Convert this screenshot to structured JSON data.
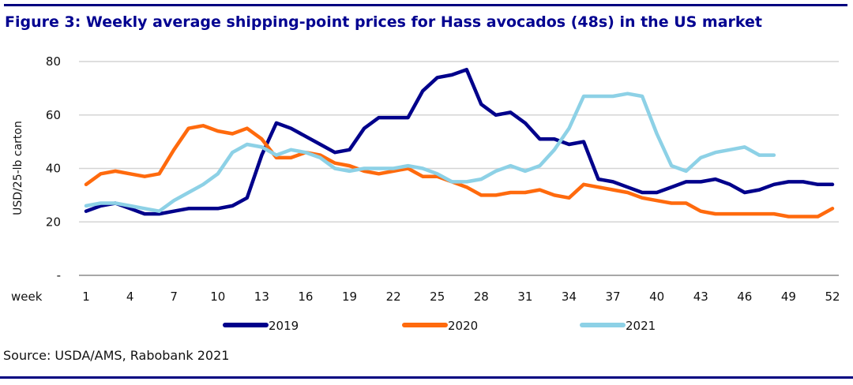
{
  "figure": {
    "title": "Figure 3: Weekly average shipping-point prices for Hass avocados (48s) in the US market",
    "source": "Source: USDA/AMS, Rabobank 2021"
  },
  "chart_data": {
    "type": "line",
    "title": "Figure 3: Weekly average shipping-point prices for Hass avocados (48s) in the US market",
    "xlabel": "week",
    "ylabel": "USD/25-lb carton",
    "ylim": [
      0,
      80
    ],
    "xlim": [
      1,
      52
    ],
    "grid": true,
    "legend": "bottom-center",
    "y_ticks": [
      {
        "value": 0,
        "label": "-"
      },
      {
        "value": 20,
        "label": "20"
      },
      {
        "value": 40,
        "label": "40"
      },
      {
        "value": 60,
        "label": "60"
      },
      {
        "value": 80,
        "label": "80"
      }
    ],
    "x_ticks": [
      1,
      4,
      7,
      10,
      13,
      16,
      19,
      22,
      25,
      28,
      31,
      34,
      37,
      40,
      43,
      46,
      49,
      52
    ],
    "x_tick_labels": [
      "1",
      "4",
      "7",
      "10",
      "13",
      "16",
      "19",
      "22",
      "25",
      "28",
      "31",
      "34",
      "37",
      "40",
      "43",
      "46",
      "49",
      "52"
    ],
    "series": [
      {
        "name": "2019",
        "color": "#00008B",
        "start_week": 1,
        "values": [
          24,
          26,
          27,
          25,
          23,
          23,
          24,
          25,
          25,
          25,
          26,
          29,
          45,
          57,
          55,
          52,
          49,
          46,
          47,
          55,
          59,
          59,
          59,
          69,
          74,
          75,
          77,
          64,
          60,
          61,
          57,
          51,
          51,
          49,
          50,
          36,
          35,
          33,
          31,
          31,
          33,
          35,
          35,
          36,
          34,
          31,
          32,
          34,
          35,
          35,
          34,
          34
        ]
      },
      {
        "name": "2020",
        "color": "#FF6A0D",
        "start_week": 1,
        "values": [
          34,
          38,
          39,
          38,
          37,
          38,
          47,
          55,
          56,
          54,
          53,
          55,
          51,
          44,
          44,
          46,
          45,
          42,
          41,
          39,
          38,
          39,
          40,
          37,
          37,
          35,
          33,
          30,
          30,
          31,
          31,
          32,
          30,
          29,
          34,
          33,
          32,
          31,
          29,
          28,
          27,
          27,
          24,
          23,
          23,
          23,
          23,
          23,
          22,
          22,
          22,
          25
        ]
      },
      {
        "name": "2021",
        "color": "#8DD1E6",
        "start_week": 1,
        "values": [
          26,
          27,
          27,
          26,
          25,
          24,
          28,
          31,
          34,
          38,
          46,
          49,
          48,
          45,
          47,
          46,
          44,
          40,
          39,
          40,
          40,
          40,
          41,
          40,
          38,
          35,
          35,
          36,
          39,
          41,
          39,
          41,
          47,
          55,
          67,
          67,
          67,
          68,
          67,
          53,
          41,
          39,
          44,
          46,
          47,
          48,
          45,
          45
        ]
      }
    ]
  }
}
